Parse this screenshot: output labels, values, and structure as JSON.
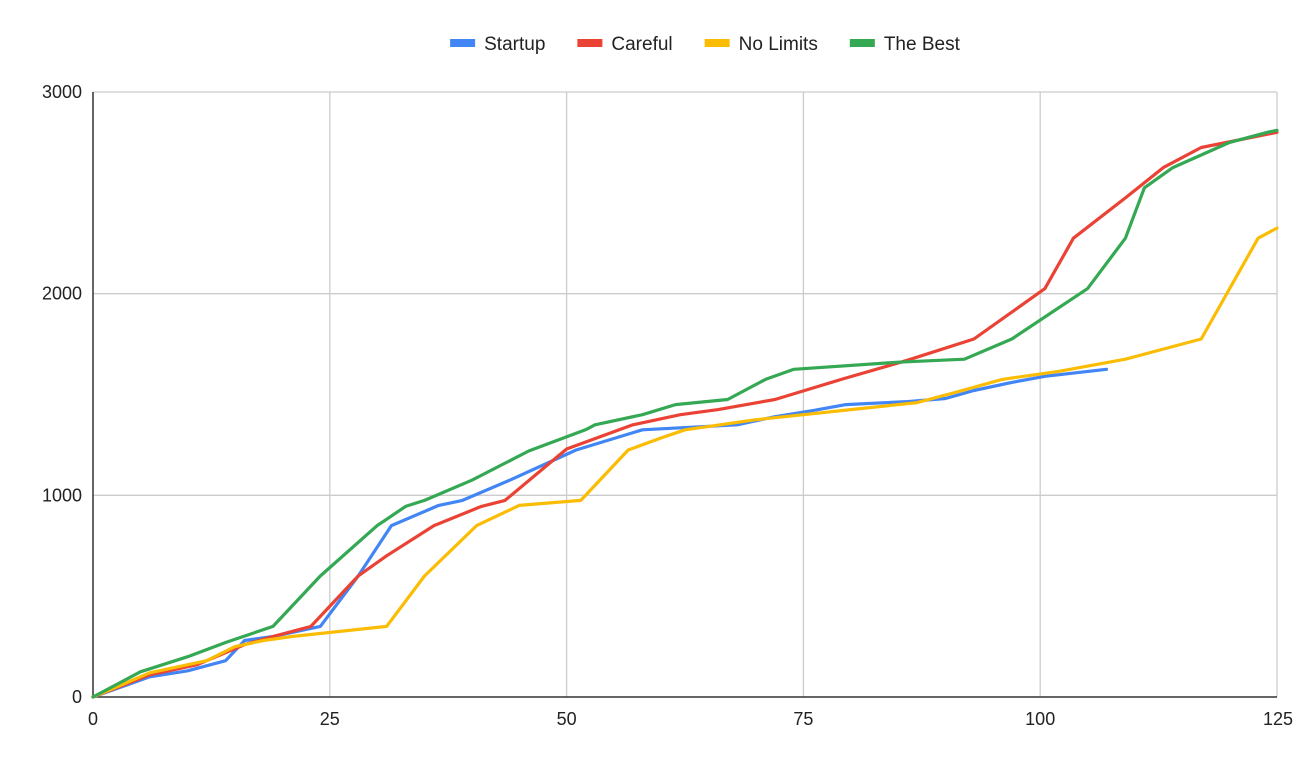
{
  "chart_data": {
    "type": "line",
    "title": "",
    "xlabel": "",
    "ylabel": "",
    "xlim": [
      0,
      125
    ],
    "ylim": [
      0,
      3000
    ],
    "x_ticks": [
      0,
      25,
      50,
      75,
      100,
      125
    ],
    "y_ticks": [
      0,
      1000,
      2000,
      3000
    ],
    "grid": true,
    "legend_position": "top",
    "series": [
      {
        "name": "Startup",
        "color": "#4285F4",
        "points": [
          [
            0,
            0
          ],
          [
            6,
            100
          ],
          [
            10,
            130
          ],
          [
            14,
            180
          ],
          [
            16,
            280
          ],
          [
            19,
            300
          ],
          [
            24,
            350
          ],
          [
            28,
            600
          ],
          [
            31.5,
            850
          ],
          [
            36.5,
            950
          ],
          [
            39,
            975
          ],
          [
            44,
            1075
          ],
          [
            51,
            1225
          ],
          [
            58,
            1325
          ],
          [
            62,
            1335
          ],
          [
            68,
            1350
          ],
          [
            72,
            1390
          ],
          [
            76,
            1420
          ],
          [
            79.5,
            1450
          ],
          [
            86,
            1465
          ],
          [
            90,
            1480
          ],
          [
            93,
            1520
          ],
          [
            97,
            1560
          ],
          [
            100.5,
            1590
          ],
          [
            107,
            1625
          ]
        ]
      },
      {
        "name": "Careful",
        "color": "#EA4335",
        "points": [
          [
            0,
            0
          ],
          [
            6,
            110
          ],
          [
            11,
            160
          ],
          [
            16,
            260
          ],
          [
            19,
            300
          ],
          [
            23,
            350
          ],
          [
            28,
            600
          ],
          [
            31,
            700
          ],
          [
            36,
            850
          ],
          [
            41,
            945
          ],
          [
            43.5,
            975
          ],
          [
            50,
            1230
          ],
          [
            57,
            1350
          ],
          [
            62,
            1400
          ],
          [
            66,
            1425
          ],
          [
            72,
            1475
          ],
          [
            79,
            1575
          ],
          [
            86,
            1670
          ],
          [
            93,
            1775
          ],
          [
            100.5,
            2025
          ],
          [
            103.5,
            2275
          ],
          [
            109,
            2475
          ],
          [
            113,
            2625
          ],
          [
            117,
            2725
          ],
          [
            125,
            2800
          ]
        ]
      },
      {
        "name": "No Limits",
        "color": "#FBBC04",
        "points": [
          [
            0,
            0
          ],
          [
            6,
            120
          ],
          [
            12,
            180
          ],
          [
            15,
            250
          ],
          [
            18,
            280
          ],
          [
            21,
            300
          ],
          [
            31,
            350
          ],
          [
            35,
            600
          ],
          [
            40.5,
            850
          ],
          [
            45,
            950
          ],
          [
            51.5,
            975
          ],
          [
            56.5,
            1225
          ],
          [
            60,
            1285
          ],
          [
            62.5,
            1325
          ],
          [
            70,
            1375
          ],
          [
            75,
            1400
          ],
          [
            80,
            1425
          ],
          [
            87,
            1460
          ],
          [
            91,
            1510
          ],
          [
            96,
            1575
          ],
          [
            102,
            1615
          ],
          [
            109,
            1675
          ],
          [
            117,
            1775
          ],
          [
            123,
            2275
          ],
          [
            125,
            2325
          ]
        ]
      },
      {
        "name": "The Best",
        "color": "#34A853",
        "points": [
          [
            0,
            0
          ],
          [
            5,
            125
          ],
          [
            10,
            200
          ],
          [
            14,
            270
          ],
          [
            19,
            350
          ],
          [
            24,
            600
          ],
          [
            30,
            850
          ],
          [
            33,
            945
          ],
          [
            35,
            975
          ],
          [
            40,
            1075
          ],
          [
            46,
            1220
          ],
          [
            52,
            1325
          ],
          [
            53,
            1350
          ],
          [
            58,
            1400
          ],
          [
            61.5,
            1450
          ],
          [
            67,
            1475
          ],
          [
            71,
            1575
          ],
          [
            74,
            1625
          ],
          [
            85,
            1660
          ],
          [
            92,
            1675
          ],
          [
            97,
            1775
          ],
          [
            105,
            2025
          ],
          [
            109,
            2275
          ],
          [
            111,
            2525
          ],
          [
            114,
            2625
          ],
          [
            120,
            2750
          ],
          [
            124,
            2800
          ],
          [
            125,
            2810
          ]
        ]
      }
    ]
  }
}
